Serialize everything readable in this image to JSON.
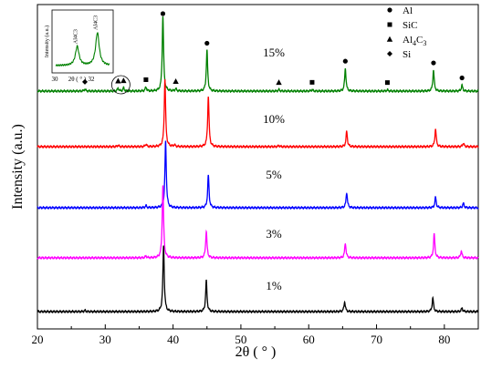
{
  "chart_data": {
    "type": "line",
    "xlabel": "2θ ( ° )",
    "ylabel": "Intensity (a.u.)",
    "xlim": [
      20,
      85
    ],
    "x_ticks": [
      20,
      30,
      40,
      50,
      60,
      70,
      80
    ],
    "y_ticks_shown": false,
    "grid": false,
    "legend_position": "top-right",
    "legend": [
      {
        "marker": "circle",
        "label": "Al"
      },
      {
        "marker": "square",
        "label": "SiC"
      },
      {
        "marker": "triangle",
        "label": "Al",
        "sub": "4",
        "label2": "C",
        "sub2": "3"
      },
      {
        "marker": "diamond",
        "label": "Si"
      }
    ],
    "series": [
      {
        "label": "15%",
        "color": "#008000",
        "baseline_level": 4,
        "peaks": [
          [
            27,
            0.08
          ],
          [
            31.9,
            0.12
          ],
          [
            32.7,
            0.13
          ],
          [
            36,
            0.16
          ],
          [
            38.5,
            3.05
          ],
          [
            40.4,
            0.09
          ],
          [
            45,
            1.65
          ],
          [
            55.6,
            0.06
          ],
          [
            60.5,
            0.06
          ],
          [
            65.4,
            0.92
          ],
          [
            71.6,
            0.05
          ],
          [
            78.4,
            0.85
          ],
          [
            82.6,
            0.24
          ]
        ]
      },
      {
        "label": "10%",
        "color": "#ff0000",
        "baseline_level": 3,
        "peaks": [
          [
            31.9,
            0.06
          ],
          [
            36,
            0.1
          ],
          [
            38.8,
            2.75
          ],
          [
            40.2,
            0.07
          ],
          [
            45.2,
            2.05
          ],
          [
            55.6,
            0.05
          ],
          [
            65.6,
            0.62
          ],
          [
            78.7,
            0.72
          ],
          [
            82.8,
            0.15
          ]
        ]
      },
      {
        "label": "5%",
        "color": "#0000ff",
        "baseline_level": 2,
        "peaks": [
          [
            36,
            0.08
          ],
          [
            38.9,
            2.7
          ],
          [
            45.2,
            1.32
          ],
          [
            65.6,
            0.62
          ],
          [
            78.7,
            0.42
          ],
          [
            82.8,
            0.18
          ]
        ]
      },
      {
        "label": "3%",
        "color": "#ff00ff",
        "baseline_level": 1,
        "peaks": [
          [
            36,
            0.07
          ],
          [
            38.5,
            2.95
          ],
          [
            44.9,
            1.08
          ],
          [
            65.4,
            0.6
          ],
          [
            78.5,
            0.97
          ],
          [
            82.5,
            0.28
          ]
        ]
      },
      {
        "label": "1%",
        "color": "#000000",
        "baseline_level": 0,
        "peaks": [
          [
            27,
            0.05
          ],
          [
            38.6,
            2.7
          ],
          [
            44.9,
            1.25
          ],
          [
            65.3,
            0.4
          ],
          [
            78.3,
            0.55
          ],
          [
            82.6,
            0.14
          ]
        ]
      }
    ],
    "annotations": [
      {
        "marker": "circle",
        "x": 38.5
      },
      {
        "marker": "circle",
        "x": 45
      },
      {
        "marker": "circle",
        "x": 65.4
      },
      {
        "marker": "circle",
        "x": 78.4
      },
      {
        "marker": "circle",
        "x": 82.6
      },
      {
        "marker": "square",
        "x": 36
      },
      {
        "marker": "square",
        "x": 60.5
      },
      {
        "marker": "square",
        "x": 71.6
      },
      {
        "marker": "triangle",
        "x": 31.9
      },
      {
        "marker": "triangle",
        "x": 32.7
      },
      {
        "marker": "triangle",
        "x": 40.4
      },
      {
        "marker": "triangle",
        "x": 55.6
      },
      {
        "marker": "diamond",
        "x": 27
      }
    ],
    "inset": {
      "ylabel": "Intensity (a.u.)",
      "xlim": [
        30,
        32
      ],
      "tick_labels": [
        "30",
        "2θ ( ° )",
        "32"
      ],
      "peak_labels": [
        "Al4C3",
        "Al4C3"
      ],
      "peaks": [
        [
          30.8,
          0.55
        ],
        [
          31.55,
          0.95
        ]
      ],
      "color": "#008000"
    }
  }
}
